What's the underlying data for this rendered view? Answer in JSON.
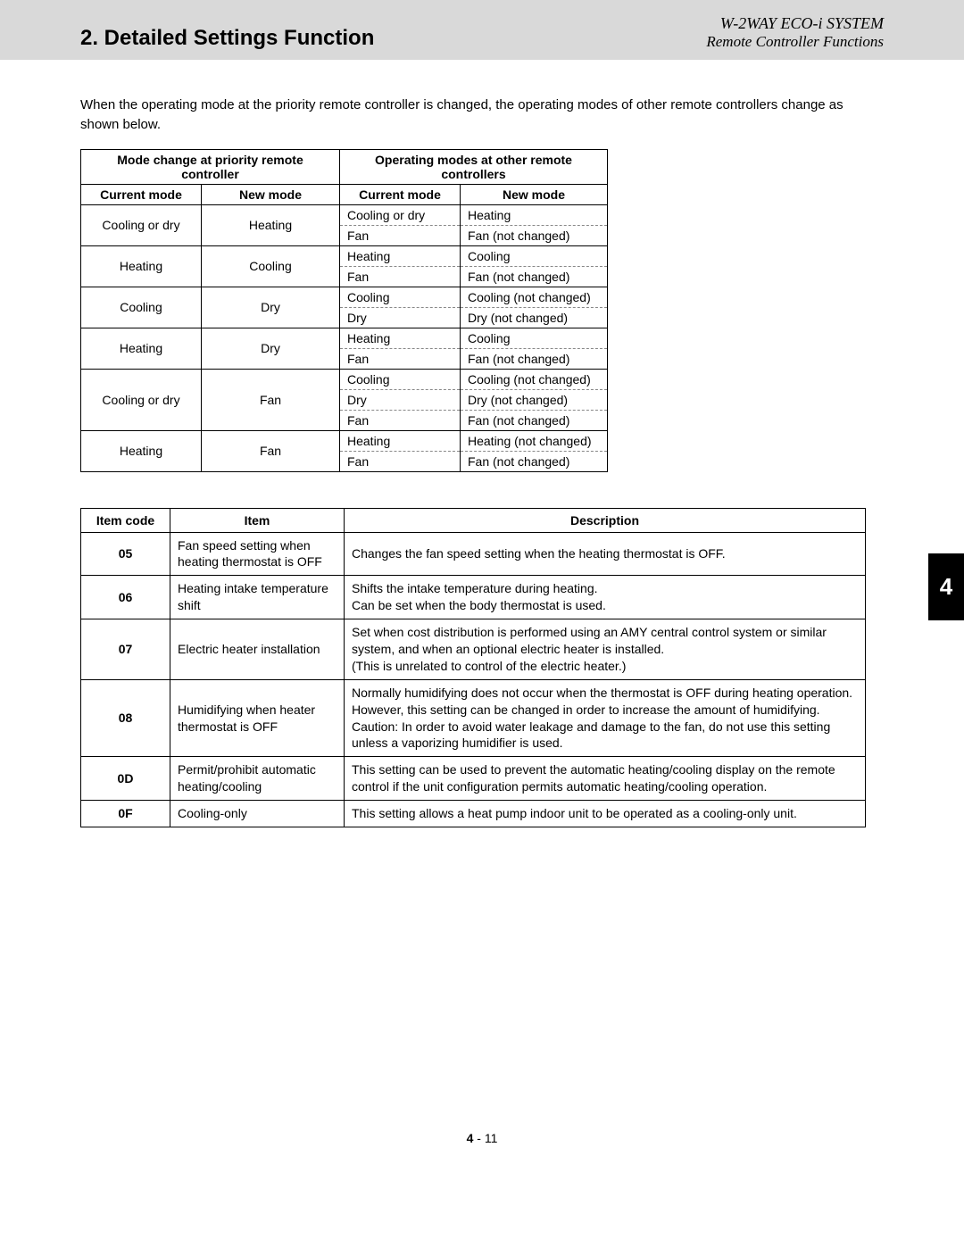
{
  "header": {
    "section_title": "2. Detailed Settings Function",
    "system_name": "W-2WAY ECO-i SYSTEM",
    "sub_name": "Remote Controller Functions"
  },
  "intro": "When the operating mode at the priority remote controller is changed, the operating modes of other remote controllers change as shown below.",
  "table1": {
    "hgroup1": "Mode change at priority remote controller",
    "hgroup2": "Operating modes at other remote controllers",
    "col1": "Current mode",
    "col2": "New mode",
    "col3": "Current mode",
    "col4": "New mode",
    "rows": [
      {
        "cm": "Cooling or dry",
        "nm": "Heating",
        "sub": [
          [
            "Cooling or dry",
            "Heating"
          ],
          [
            "Fan",
            "Fan (not changed)"
          ]
        ]
      },
      {
        "cm": "Heating",
        "nm": "Cooling",
        "sub": [
          [
            "Heating",
            "Cooling"
          ],
          [
            "Fan",
            "Fan (not changed)"
          ]
        ]
      },
      {
        "cm": "Cooling",
        "nm": "Dry",
        "sub": [
          [
            "Cooling",
            "Cooling (not changed)"
          ],
          [
            "Dry",
            "Dry (not changed)"
          ]
        ]
      },
      {
        "cm": "Heating",
        "nm": "Dry",
        "sub": [
          [
            "Heating",
            "Cooling"
          ],
          [
            "Fan",
            "Fan (not changed)"
          ]
        ]
      },
      {
        "cm": "Cooling or dry",
        "nm": "Fan",
        "sub": [
          [
            "Cooling",
            "Cooling (not changed)"
          ],
          [
            "Dry",
            "Dry (not changed)"
          ],
          [
            "Fan",
            "Fan (not changed)"
          ]
        ]
      },
      {
        "cm": "Heating",
        "nm": "Fan",
        "sub": [
          [
            "Heating",
            "Heating (not changed)"
          ],
          [
            "Fan",
            "Fan (not changed)"
          ]
        ]
      }
    ]
  },
  "table2": {
    "h1": "Item code",
    "h2": "Item",
    "h3": "Description",
    "rows": [
      {
        "code": "05",
        "item": "Fan speed setting when heating thermostat is OFF",
        "desc": "Changes the fan speed setting when the heating thermostat is OFF."
      },
      {
        "code": "06",
        "item": "Heating intake temperature shift",
        "desc": "Shifts the intake temperature during heating.\nCan be set when the body thermostat is used."
      },
      {
        "code": "07",
        "item": "Electric heater installation",
        "desc": "Set when cost distribution is performed using an AMY central control system or similar system, and when an optional electric heater is installed.\n(This is unrelated to control of the electric heater.)"
      },
      {
        "code": "08",
        "item": "Humidifying when heater thermostat is OFF",
        "desc": "Normally humidifying does not occur when the thermostat is OFF during heating operation. However, this setting can be changed in order to increase the amount of humidifying.\nCaution: In order to avoid water leakage and damage to the fan, do not use this setting unless a vaporizing humidifier is used."
      },
      {
        "code": "0D",
        "item": "Permit/prohibit automatic heating/cooling",
        "desc": "This setting can be used to prevent the automatic heating/cooling display on the remote control if the unit configuration permits automatic heating/cooling operation."
      },
      {
        "code": "0F",
        "item": "Cooling-only",
        "desc": "This setting allows a heat pump indoor unit to be operated as a cooling-only unit."
      }
    ]
  },
  "side_tab": "4",
  "page": {
    "bold": "4",
    "rest": " - 11"
  }
}
